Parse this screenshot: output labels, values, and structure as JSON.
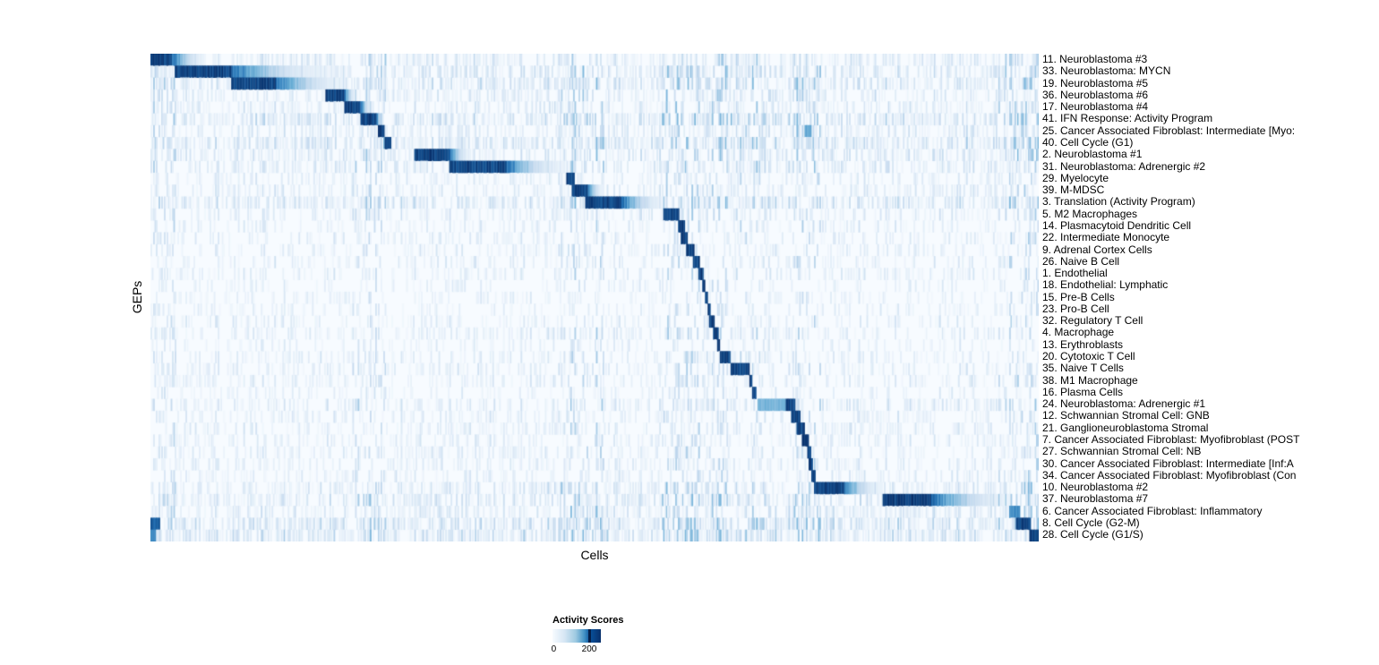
{
  "chart_data": {
    "type": "heatmap",
    "title": "",
    "xlabel": "Cells",
    "ylabel": "GEPs",
    "colorbar": {
      "title": "Activity Scores",
      "min": 0,
      "max": 200,
      "colormap": [
        "#f7fbff",
        "#c6dbef",
        "#6baed6",
        "#2171b5",
        "#08306b"
      ]
    },
    "seed": 1337,
    "column_bands": [
      {
        "start": 0.0,
        "end": 0.03,
        "intensity": 0.5
      },
      {
        "start": 0.225,
        "end": 0.265,
        "intensity": 0.5
      },
      {
        "start": 0.455,
        "end": 0.51,
        "intensity": 0.7
      },
      {
        "start": 0.575,
        "end": 0.62,
        "intensity": 0.9
      },
      {
        "start": 0.63,
        "end": 0.69,
        "intensity": 0.6
      },
      {
        "start": 0.725,
        "end": 0.755,
        "intensity": 0.7
      },
      {
        "start": 0.955,
        "end": 1.0,
        "intensity": 0.8
      }
    ],
    "rows": [
      {
        "label": "11. Neuroblastoma #3",
        "block": {
          "start": 0.0,
          "end": 0.024,
          "fade_to": 0.06
        },
        "noise": 0.5,
        "noise_amp": 0.15
      },
      {
        "label": "33. Neuroblastoma: MYCN",
        "block": {
          "start": 0.026,
          "end": 0.09,
          "fade_to": 0.2
        },
        "noise": 0.6,
        "noise_amp": 0.18
      },
      {
        "label": "19. Neuroblastoma #5",
        "block": {
          "start": 0.09,
          "end": 0.14,
          "fade_to": 0.22
        },
        "noise": 0.6,
        "noise_amp": 0.18
      },
      {
        "label": "36. Neuroblastoma #6",
        "block": {
          "start": 0.196,
          "end": 0.218,
          "fade_to": 0.232
        },
        "noise": 0.5,
        "noise_amp": 0.15
      },
      {
        "label": "17. Neuroblastoma #4",
        "block": {
          "start": 0.218,
          "end": 0.236,
          "fade_to": 0.25
        },
        "noise": 0.5,
        "noise_amp": 0.15
      },
      {
        "label": "41. IFN Response: Activity Program",
        "block": {
          "start": 0.236,
          "end": 0.254,
          "fade_to": 0.262
        },
        "noise": 0.65,
        "noise_amp": 0.2
      },
      {
        "label": "25. Cancer Associated Fibroblast: Intermediate [Myo:",
        "block": {
          "start": 0.255,
          "end": 0.264
        },
        "extra_blocks": [
          {
            "start": 0.737,
            "end": 0.744,
            "intensity": 0.55
          }
        ],
        "noise": 0.5,
        "noise_amp": 0.15
      },
      {
        "label": "40. Cell Cycle (G1)",
        "block": {
          "start": 0.263,
          "end": 0.271
        },
        "noise": 0.7,
        "noise_amp": 0.2
      },
      {
        "label": "2. Neuroblastoma #1",
        "block": {
          "start": 0.297,
          "end": 0.336,
          "fade_to": 0.36
        },
        "noise": 0.55,
        "noise_amp": 0.16
      },
      {
        "label": "31. Neuroblastoma: Adrenergic #2",
        "block": {
          "start": 0.336,
          "end": 0.4,
          "fade_to": 0.466
        },
        "noise": 0.55,
        "noise_amp": 0.16
      },
      {
        "label": "29. Myelocyte",
        "block": {
          "start": 0.468,
          "end": 0.477
        },
        "noise": 0.4,
        "noise_amp": 0.12
      },
      {
        "label": "39. M-MDSC",
        "block": {
          "start": 0.474,
          "end": 0.492,
          "fade_to": 0.51
        },
        "noise": 0.45,
        "noise_amp": 0.13
      },
      {
        "label": "3. Translation (Activity Program)",
        "block": {
          "start": 0.49,
          "end": 0.53,
          "fade_to": 0.58
        },
        "noise": 0.65,
        "noise_amp": 0.18
      },
      {
        "label": "5. M2 Macrophages",
        "block": {
          "start": 0.578,
          "end": 0.595
        },
        "noise": 0.45,
        "noise_amp": 0.13
      },
      {
        "label": "14. Plasmacytoid Dendritic Cell",
        "block": {
          "start": 0.594,
          "end": 0.601
        },
        "noise": 0.35,
        "noise_amp": 0.12
      },
      {
        "label": "22. Intermediate Monocyte",
        "block": {
          "start": 0.597,
          "end": 0.604
        },
        "noise": 0.35,
        "noise_amp": 0.12
      },
      {
        "label": "9. Adrenal Cortex Cells",
        "block": {
          "start": 0.603,
          "end": 0.612
        },
        "noise": 0.35,
        "noise_amp": 0.12
      },
      {
        "label": "26. Naive B Cell",
        "block": {
          "start": 0.611,
          "end": 0.618
        },
        "noise": 0.35,
        "noise_amp": 0.12
      },
      {
        "label": "1. Endothelial",
        "block": {
          "start": 0.617,
          "end": 0.623
        },
        "noise": 0.35,
        "noise_amp": 0.12
      },
      {
        "label": "18. Endothelial: Lymphatic",
        "block": {
          "start": 0.621,
          "end": 0.625
        },
        "noise": 0.3,
        "noise_amp": 0.1
      },
      {
        "label": "15. Pre-B Cells",
        "block": {
          "start": 0.624,
          "end": 0.628
        },
        "noise": 0.3,
        "noise_amp": 0.1
      },
      {
        "label": "23. Pro-B Cell",
        "block": {
          "start": 0.627,
          "end": 0.63
        },
        "noise": 0.3,
        "noise_amp": 0.1
      },
      {
        "label": "32. Regulatory T Cell",
        "block": {
          "start": 0.629,
          "end": 0.635
        },
        "noise": 0.35,
        "noise_amp": 0.12
      },
      {
        "label": "4. Macrophage",
        "block": {
          "start": 0.634,
          "end": 0.639
        },
        "noise": 0.4,
        "noise_amp": 0.12
      },
      {
        "label": "13. Erythroblasts",
        "block": {
          "start": 0.638,
          "end": 0.641
        },
        "noise": 0.3,
        "noise_amp": 0.1
      },
      {
        "label": "20. Cytotoxic T Cell",
        "block": {
          "start": 0.641,
          "end": 0.654
        },
        "noise": 0.4,
        "noise_amp": 0.12
      },
      {
        "label": "35. Naive T Cells",
        "block": {
          "start": 0.653,
          "end": 0.675
        },
        "noise": 0.4,
        "noise_amp": 0.12
      },
      {
        "label": "38. M1 Macrophage",
        "block": {
          "start": 0.674,
          "end": 0.678
        },
        "noise": 0.4,
        "noise_amp": 0.12
      },
      {
        "label": "16. Plasma Cells",
        "block": {
          "start": 0.678,
          "end": 0.682
        },
        "noise": 0.3,
        "noise_amp": 0.1
      },
      {
        "label": "24. Neuroblastoma: Adrenergic #1",
        "block": {
          "start": 0.683,
          "end": 0.716,
          "intensity": 0.5
        },
        "extra_blocks": [
          {
            "start": 0.716,
            "end": 0.726,
            "intensity": 1
          }
        ],
        "noise": 0.5,
        "noise_amp": 0.15
      },
      {
        "label": "12. Schwannian Stromal Cell: GNB",
        "block": {
          "start": 0.722,
          "end": 0.732
        },
        "noise": 0.4,
        "noise_amp": 0.12
      },
      {
        "label": "21. Ganglioneuroblastoma Stromal",
        "block": {
          "start": 0.728,
          "end": 0.737
        },
        "noise": 0.4,
        "noise_amp": 0.12
      },
      {
        "label": "7. Cancer Associated Fibroblast: Myofibroblast (POST",
        "block": {
          "start": 0.734,
          "end": 0.741
        },
        "noise": 0.4,
        "noise_amp": 0.12
      },
      {
        "label": "27. Schwannian Stromal Cell: NB",
        "block": {
          "start": 0.739,
          "end": 0.745
        },
        "noise": 0.4,
        "noise_amp": 0.12
      },
      {
        "label": "30. Cancer Associated Fibroblast: Intermediate [Inf:A",
        "block": {
          "start": 0.742,
          "end": 0.746
        },
        "noise": 0.4,
        "noise_amp": 0.12
      },
      {
        "label": "34. Cancer Associated Fibroblast: Myofibroblast (Con",
        "block": {
          "start": 0.745,
          "end": 0.749
        },
        "noise": 0.4,
        "noise_amp": 0.12
      },
      {
        "label": "10. Neuroblastoma #2",
        "block": {
          "start": 0.747,
          "end": 0.78,
          "fade_to": 0.824
        },
        "noise": 0.55,
        "noise_amp": 0.16
      },
      {
        "label": "37. Neuroblastoma #7",
        "block": {
          "start": 0.824,
          "end": 0.88,
          "fade_to": 0.97
        },
        "noise": 0.6,
        "noise_amp": 0.18
      },
      {
        "label": "6. Cancer Associated Fibroblast: Inflammatory",
        "block": {
          "start": 0.968,
          "end": 0.98,
          "intensity": 0.7
        },
        "noise": 0.6,
        "noise_amp": 0.16
      },
      {
        "label": "8. Cell Cycle (G2-M)",
        "block": {
          "start": 0.975,
          "end": 0.992
        },
        "extra_blocks": [
          {
            "start": 0.0,
            "end": 0.01,
            "intensity": 0.9
          }
        ],
        "noise": 0.7,
        "noise_amp": 0.2
      },
      {
        "label": "28. Cell Cycle (G1/S)",
        "block": {
          "start": 0.99,
          "end": 1.0
        },
        "extra_blocks": [
          {
            "start": 0.0,
            "end": 0.006,
            "intensity": 0.7
          }
        ],
        "noise": 0.7,
        "noise_amp": 0.2
      }
    ]
  }
}
